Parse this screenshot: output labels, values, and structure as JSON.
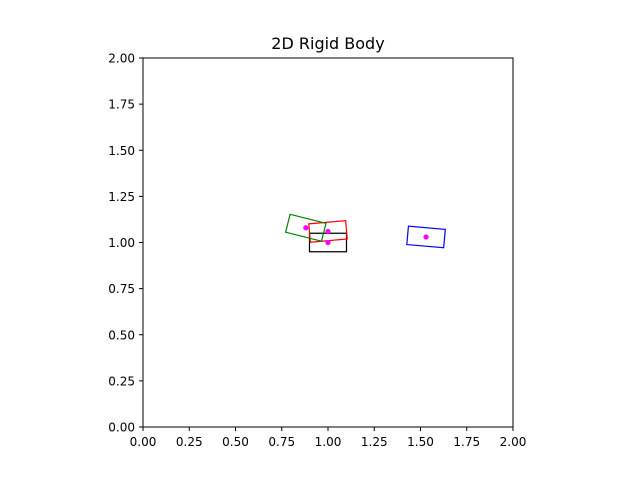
{
  "chart_data": {
    "type": "scatter",
    "title": "2D Rigid Body",
    "xlabel": "",
    "ylabel": "",
    "xlim": [
      0,
      2
    ],
    "ylim": [
      0,
      2
    ],
    "aspect": "equal",
    "grid": false,
    "x_ticks": [
      "0.00",
      "0.25",
      "0.50",
      "0.75",
      "1.00",
      "1.25",
      "1.50",
      "1.75",
      "2.00"
    ],
    "y_ticks": [
      "0.00",
      "0.25",
      "0.50",
      "0.75",
      "1.00",
      "1.25",
      "1.50",
      "1.75",
      "2.00"
    ],
    "bodies": [
      {
        "color": "#000000",
        "center": [
          1.0,
          1.0
        ],
        "width": 0.2,
        "height": 0.1,
        "angle_deg": 0
      },
      {
        "color": "#ff0000",
        "center": [
          1.0,
          1.06
        ],
        "width": 0.2,
        "height": 0.1,
        "angle_deg": 5
      },
      {
        "color": "#008000",
        "center": [
          0.88,
          1.08
        ],
        "width": 0.2,
        "height": 0.1,
        "angle_deg": -14
      },
      {
        "color": "#0000ff",
        "center": [
          1.53,
          1.03
        ],
        "width": 0.2,
        "height": 0.1,
        "angle_deg": -5
      }
    ],
    "center_marker_color": "#ff00ff"
  }
}
